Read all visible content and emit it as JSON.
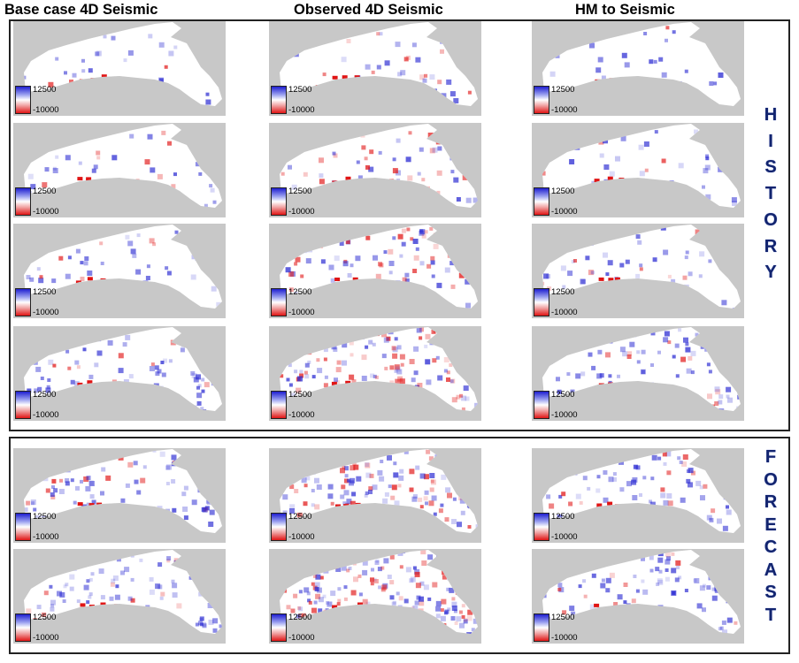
{
  "columns": [
    "Base case 4D Seismic",
    "Observed 4D Seismic",
    "HM to Seismic"
  ],
  "history_label": "HISTORY",
  "forecast_label": "FORECAST",
  "colorbar": {
    "max": "12500",
    "min": "-10000",
    "max_color": "#1f1fd0",
    "min_color": "#e01515",
    "mid_color": "#ffffff"
  },
  "sections": [
    {
      "name": "HISTORY",
      "rows": 4
    },
    {
      "name": "FORECAST",
      "rows": 2
    }
  ]
}
